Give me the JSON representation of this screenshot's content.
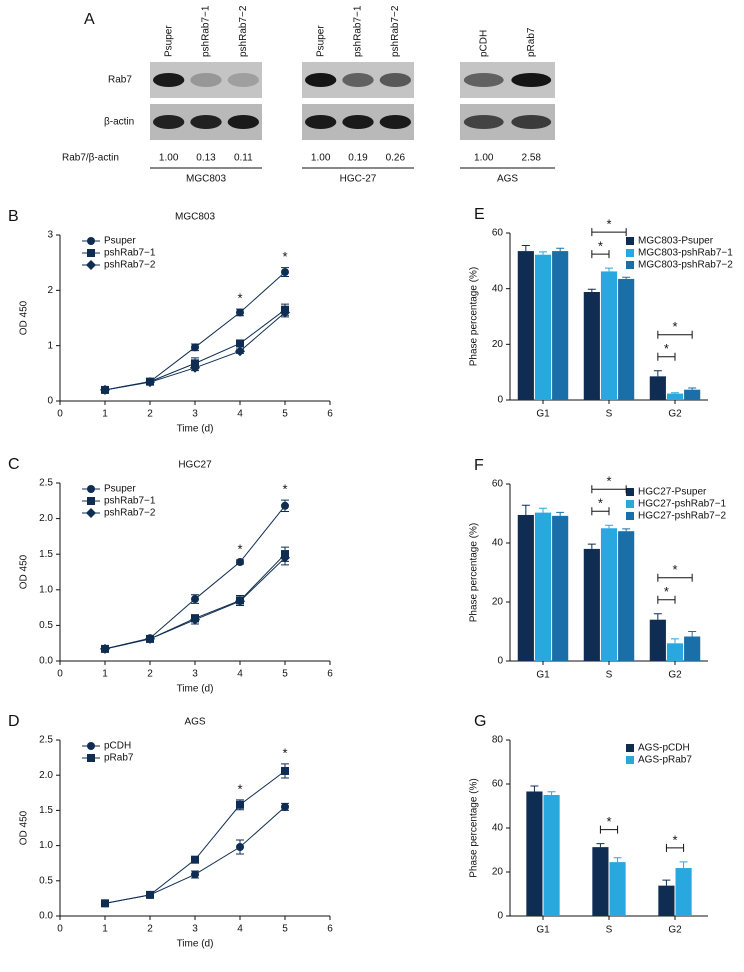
{
  "panel_a": {
    "label": "A",
    "row_labels": [
      "Rab7",
      "β-actin"
    ],
    "ratio_label": "Rab7/β-actin",
    "groups": [
      {
        "name": "MGC803",
        "lanes": [
          "Psuper",
          "pshRab7−1",
          "pshRab7−2"
        ],
        "ratios": [
          "1.00",
          "0.13",
          "0.11"
        ]
      },
      {
        "name": "HGC-27",
        "lanes": [
          "Psuper",
          "pshRab7−1",
          "pshRab7−2"
        ],
        "ratios": [
          "1.00",
          "0.19",
          "0.26"
        ]
      },
      {
        "name": "AGS",
        "lanes": [
          "pCDH",
          "pRab7"
        ],
        "ratios": [
          "1.00",
          "2.58"
        ]
      }
    ]
  },
  "chart_data": [
    {
      "type": "line",
      "label": "B",
      "title": "MGC803",
      "xlabel": "Time (d)",
      "ylabel": "OD 450",
      "x": [
        1,
        2,
        3,
        4,
        5
      ],
      "xlim": [
        0,
        6
      ],
      "xticks": [
        0,
        1,
        2,
        3,
        4,
        5,
        6
      ],
      "ylim": [
        0,
        3
      ],
      "yticks": [
        0,
        1,
        2,
        3
      ],
      "series": [
        {
          "name": "Psuper",
          "color": "#0f2d52",
          "marker": "circle",
          "values": [
            0.2,
            0.35,
            0.97,
            1.6,
            2.33
          ],
          "errors": [
            0.03,
            0.03,
            0.06,
            0.06,
            0.08
          ]
        },
        {
          "name": "pshRab7−1",
          "color": "#0f2d52",
          "marker": "square",
          "values": [
            0.2,
            0.35,
            0.68,
            1.04,
            1.65
          ],
          "errors": [
            0.02,
            0.03,
            0.1,
            0.04,
            0.1
          ]
        },
        {
          "name": "pshRab7−2",
          "color": "#0f2d52",
          "marker": "diamond",
          "values": [
            0.2,
            0.34,
            0.6,
            0.9,
            1.6
          ],
          "errors": [
            0.02,
            0.03,
            0.05,
            0.04,
            0.08
          ]
        }
      ],
      "significance": [
        {
          "x": 4,
          "text": "*"
        },
        {
          "x": 5,
          "text": "*"
        }
      ]
    },
    {
      "type": "line",
      "label": "C",
      "title": "HGC27",
      "xlabel": "Time (d)",
      "ylabel": "OD 450",
      "x": [
        1,
        2,
        3,
        4,
        5
      ],
      "xlim": [
        0,
        6
      ],
      "xticks": [
        0,
        1,
        2,
        3,
        4,
        5,
        6
      ],
      "ylim": [
        0,
        2.5
      ],
      "yticks": [
        {
          "value": 0,
          "label": "0.0"
        },
        0.5,
        {
          "value": 1,
          "label": "1.0"
        },
        1.5,
        {
          "value": 2,
          "label": "2.0"
        },
        2.5
      ],
      "series": [
        {
          "name": "Psuper",
          "color": "#0f2d52",
          "marker": "circle",
          "values": [
            0.17,
            0.32,
            0.87,
            1.39,
            2.18
          ],
          "errors": [
            0.02,
            0.02,
            0.06,
            0.03,
            0.08
          ]
        },
        {
          "name": "pshRab7−1",
          "color": "#0f2d52",
          "marker": "square",
          "values": [
            0.17,
            0.31,
            0.6,
            0.85,
            1.5
          ],
          "errors": [
            0.02,
            0.02,
            0.05,
            0.07,
            0.1
          ]
        },
        {
          "name": "pshRab7−2",
          "color": "#0f2d52",
          "marker": "diamond",
          "values": [
            0.17,
            0.31,
            0.58,
            0.84,
            1.45
          ],
          "errors": [
            0.02,
            0.02,
            0.06,
            0.06,
            0.1
          ]
        }
      ],
      "significance": [
        {
          "x": 4,
          "text": "*"
        },
        {
          "x": 5,
          "text": "*"
        }
      ]
    },
    {
      "type": "line",
      "label": "D",
      "title": "AGS",
      "xlabel": "Time (d)",
      "ylabel": "OD 450",
      "x": [
        1,
        2,
        3,
        4,
        5
      ],
      "xlim": [
        0,
        6
      ],
      "xticks": [
        0,
        1,
        2,
        3,
        4,
        5,
        6
      ],
      "ylim": [
        0,
        2.5
      ],
      "yticks": [
        {
          "value": 0,
          "label": "0.0"
        },
        0.5,
        {
          "value": 1,
          "label": "1.0"
        },
        1.5,
        {
          "value": 2,
          "label": "2.0"
        },
        2.5
      ],
      "series": [
        {
          "name": "pCDH",
          "color": "#0f2d52",
          "marker": "circle",
          "values": [
            0.18,
            0.3,
            0.59,
            0.98,
            1.55
          ],
          "errors": [
            0.02,
            0.02,
            0.05,
            0.1,
            0.05
          ]
        },
        {
          "name": "pRab7",
          "color": "#0f2d52",
          "marker": "square",
          "values": [
            0.18,
            0.3,
            0.8,
            1.58,
            2.06
          ],
          "errors": [
            0.02,
            0.02,
            0.02,
            0.07,
            0.1
          ]
        }
      ],
      "significance": [
        {
          "x": 4,
          "text": "*"
        },
        {
          "x": 5,
          "text": "*"
        }
      ]
    },
    {
      "type": "bar",
      "label": "E",
      "ylabel": "Phase percentage (%)",
      "categories": [
        "G1",
        "S",
        "G2"
      ],
      "ylim": [
        0,
        60
      ],
      "yticks": [
        0,
        20,
        40,
        60
      ],
      "series": [
        {
          "name": "MGC803-Psuper",
          "color": "#0f2d52",
          "values": [
            53.5,
            38.8,
            8.5
          ],
          "errors": [
            2,
            1,
            2
          ]
        },
        {
          "name": "MGC803-pshRab7−1",
          "color": "#29a8e0",
          "values": [
            52.2,
            46.2,
            2.3
          ],
          "errors": [
            1,
            1.2,
            0.3
          ]
        },
        {
          "name": "MGC803-pshRab7−2",
          "color": "#1a6fa8",
          "values": [
            53.5,
            43.5,
            3.7
          ],
          "errors": [
            1,
            0.6,
            0.6
          ]
        }
      ],
      "significance": [
        {
          "category": 1,
          "from": 0,
          "to": 1,
          "text": "*"
        },
        {
          "category": 1,
          "from": 0,
          "to": 2,
          "text": "*"
        },
        {
          "category": 2,
          "from": 0,
          "to": 1,
          "text": "*"
        },
        {
          "category": 2,
          "from": 0,
          "to": 2,
          "text": "*"
        }
      ]
    },
    {
      "type": "bar",
      "label": "F",
      "ylabel": "Phase percentage (%)",
      "categories": [
        "G1",
        "S",
        "G2"
      ],
      "ylim": [
        0,
        60
      ],
      "yticks": [
        0,
        20,
        40,
        60
      ],
      "series": [
        {
          "name": "HGC27-Psuper",
          "color": "#0f2d52",
          "values": [
            49.5,
            38,
            14
          ],
          "errors": [
            3.3,
            1.6,
            2
          ]
        },
        {
          "name": "HGC27-pshRab7−1",
          "color": "#29a8e0",
          "values": [
            50.3,
            45,
            6
          ],
          "errors": [
            1.5,
            1,
            1.5
          ]
        },
        {
          "name": "HGC27-pshRab7−2",
          "color": "#1a6fa8",
          "values": [
            49.2,
            44,
            8.3
          ],
          "errors": [
            1.2,
            0.8,
            1.7
          ]
        }
      ],
      "significance": [
        {
          "category": 1,
          "from": 0,
          "to": 1,
          "text": "*"
        },
        {
          "category": 1,
          "from": 0,
          "to": 2,
          "text": "*"
        },
        {
          "category": 2,
          "from": 0,
          "to": 1,
          "text": "*"
        },
        {
          "category": 2,
          "from": 0,
          "to": 2,
          "text": "*"
        }
      ]
    },
    {
      "type": "bar",
      "label": "G",
      "ylabel": "Phase percentage (%)",
      "categories": [
        "G1",
        "S",
        "G2"
      ],
      "ylim": [
        0,
        80
      ],
      "yticks": [
        0,
        20,
        40,
        60,
        80
      ],
      "series": [
        {
          "name": "AGS-pCDH",
          "color": "#0f2d52",
          "values": [
            56.6,
            31.3,
            13.8
          ],
          "errors": [
            2.5,
            1.6,
            2.5
          ]
        },
        {
          "name": "AGS-pRab7",
          "color": "#29a8e0",
          "values": [
            55,
            24.5,
            21.8
          ],
          "errors": [
            1.5,
            2,
            2.8
          ]
        }
      ],
      "significance": [
        {
          "category": 1,
          "from": 0,
          "to": 1,
          "text": "*"
        },
        {
          "category": 2,
          "from": 0,
          "to": 1,
          "text": "*"
        }
      ]
    }
  ]
}
